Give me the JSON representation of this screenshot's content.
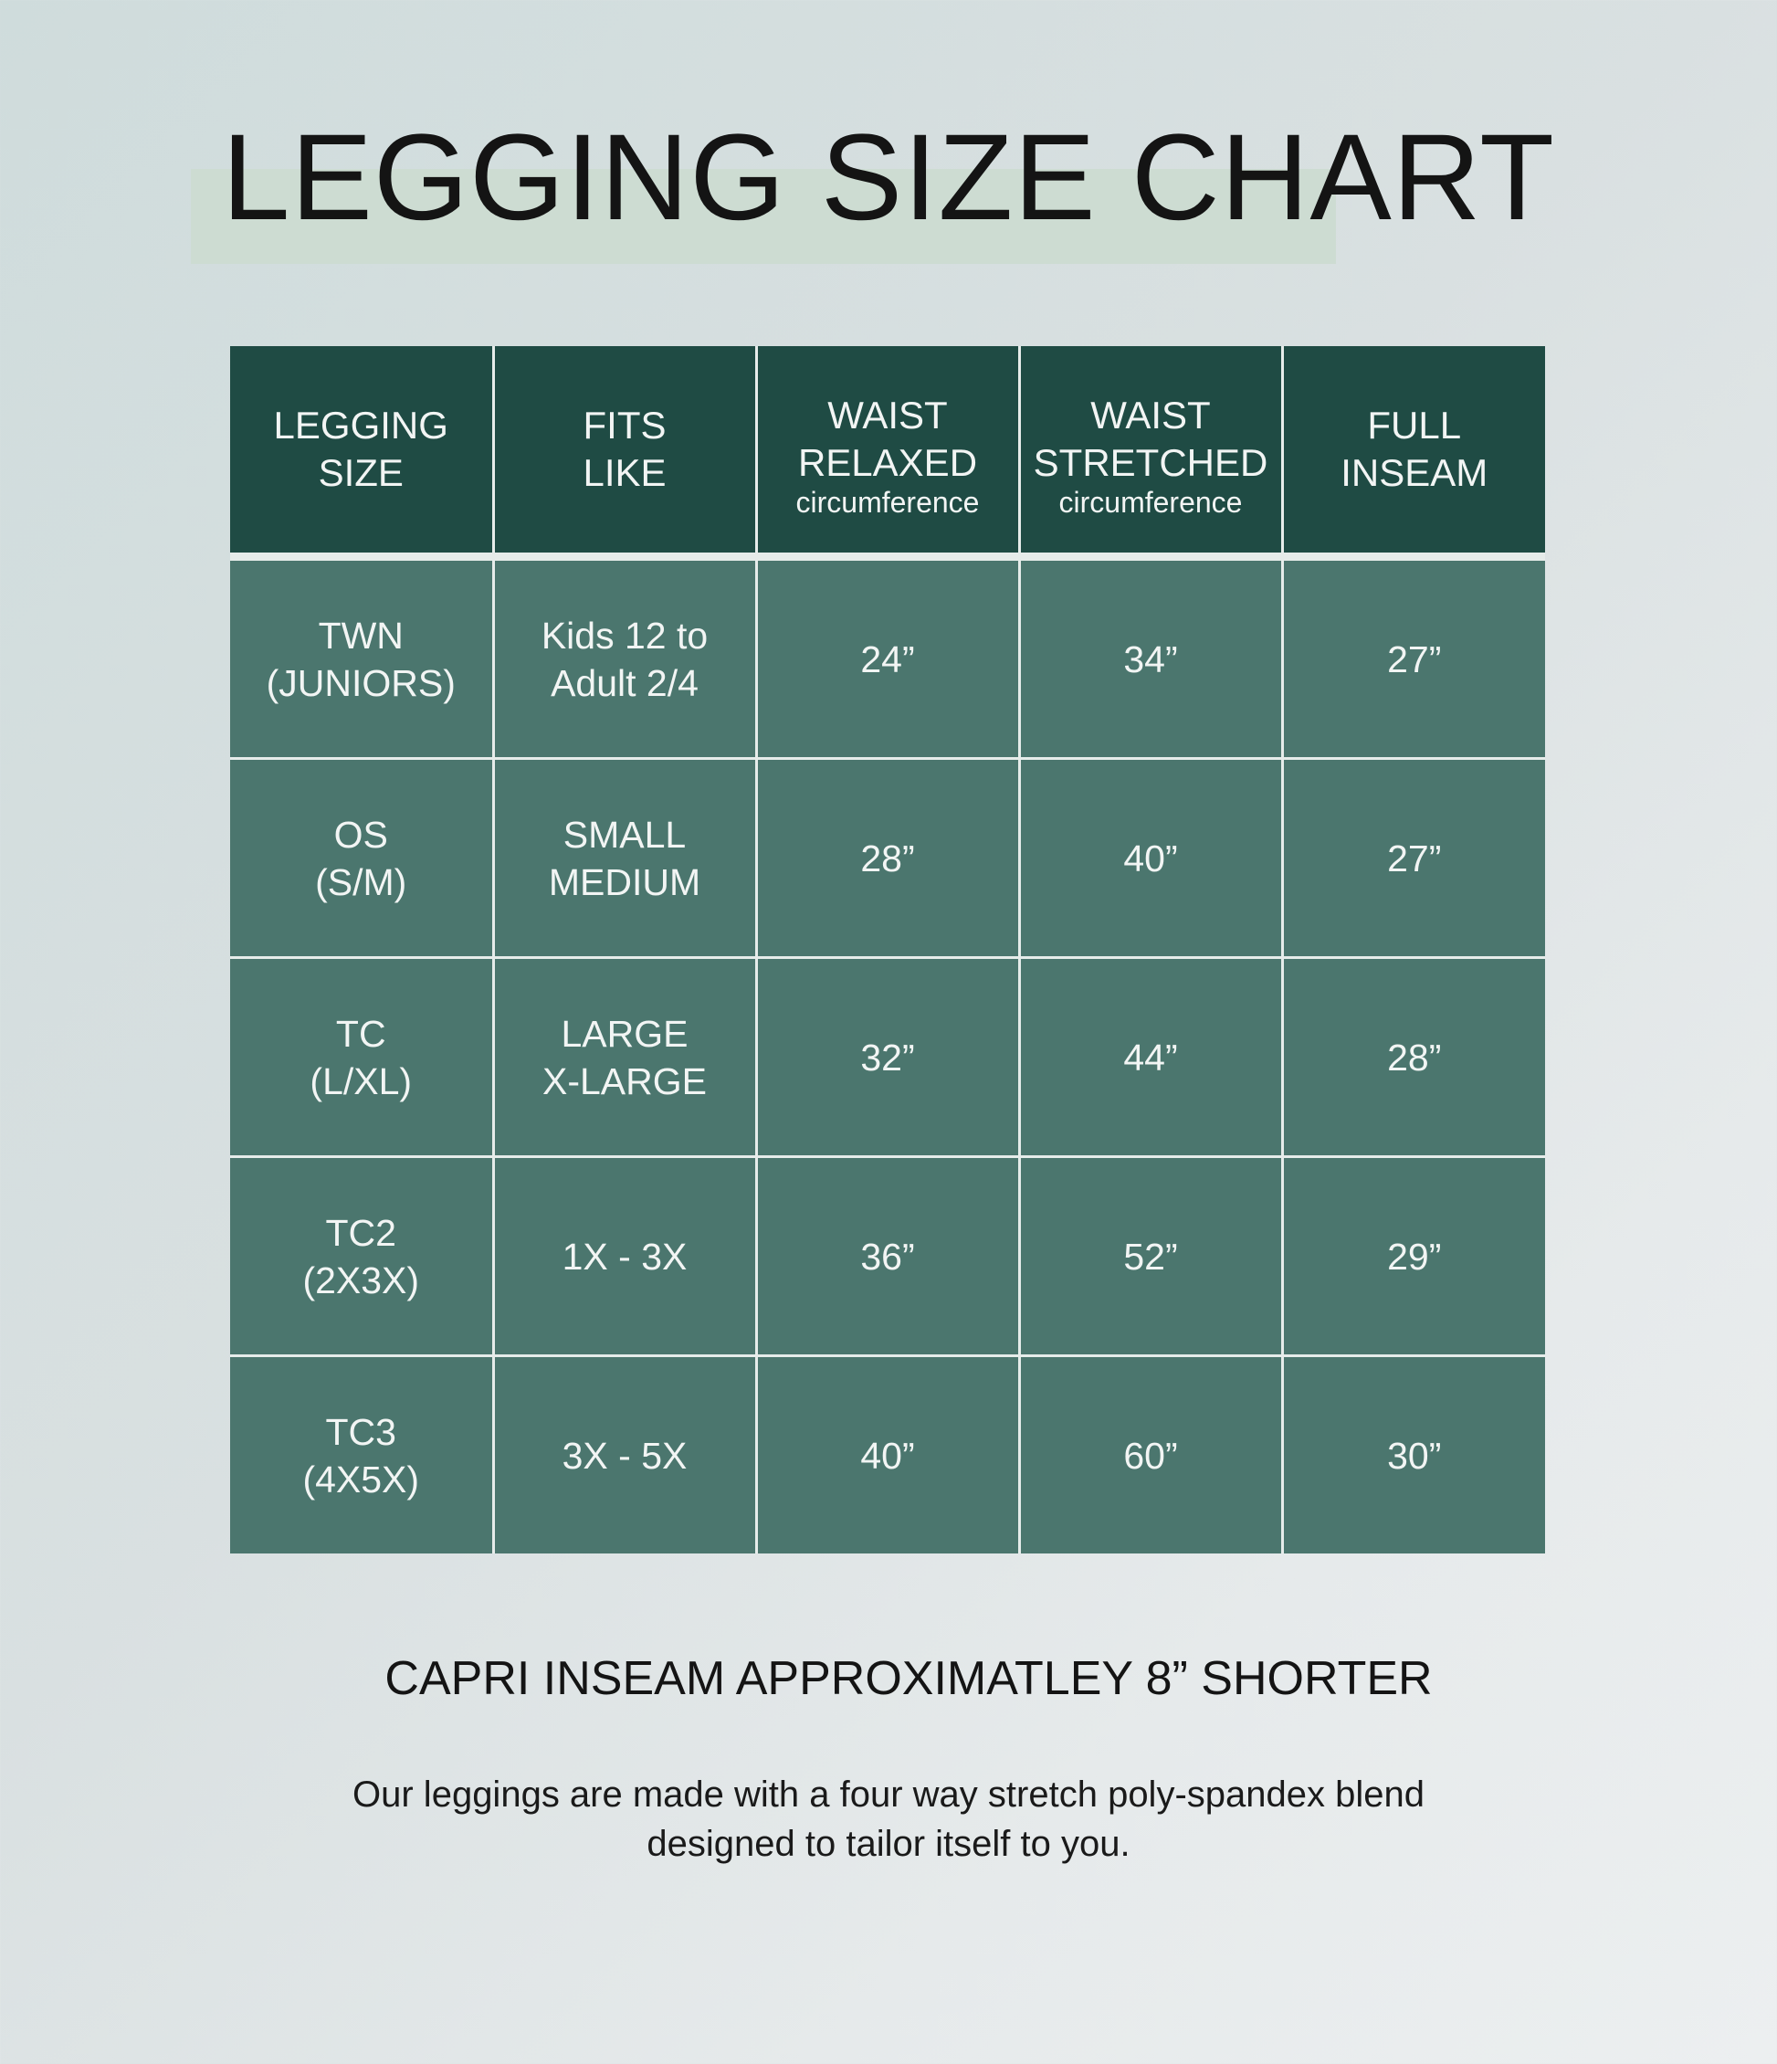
{
  "title": "LEGGING SIZE CHART",
  "table": {
    "headers": [
      {
        "lines": [
          "LEGGING",
          "SIZE"
        ],
        "sub": ""
      },
      {
        "lines": [
          "FITS",
          "LIKE"
        ],
        "sub": ""
      },
      {
        "lines": [
          "WAIST",
          "RELAXED"
        ],
        "sub": "circumference"
      },
      {
        "lines": [
          "WAIST",
          "STRETCHED"
        ],
        "sub": "circumference"
      },
      {
        "lines": [
          "FULL",
          "INSEAM"
        ],
        "sub": ""
      }
    ],
    "rows": [
      {
        "size": [
          "TWN",
          "(JUNIORS)"
        ],
        "fits": [
          "Kids 12 to",
          "Adult 2/4"
        ],
        "relaxed": "24”",
        "stretched": "34”",
        "inseam": "27”"
      },
      {
        "size": [
          "OS",
          "(S/M)"
        ],
        "fits": [
          "SMALL",
          "MEDIUM"
        ],
        "relaxed": "28”",
        "stretched": "40”",
        "inseam": "27”"
      },
      {
        "size": [
          "TC",
          "(L/XL)"
        ],
        "fits": [
          "LARGE",
          "X-LARGE"
        ],
        "relaxed": "32”",
        "stretched": "44”",
        "inseam": "28”"
      },
      {
        "size": [
          "TC2",
          "(2X3X)"
        ],
        "fits": [
          "1X - 3X",
          ""
        ],
        "relaxed": "36”",
        "stretched": "52”",
        "inseam": "29”"
      },
      {
        "size": [
          "TC3",
          "(4X5X)"
        ],
        "fits": [
          "3X - 5X",
          ""
        ],
        "relaxed": "40”",
        "stretched": "60”",
        "inseam": "30”"
      }
    ]
  },
  "capri_note": "CAPRI INSEAM APPROXIMATLEY 8” SHORTER",
  "description": [
    "Our leggings are made with a four way stretch poly-spandex blend",
    "designed to tailor itself to you."
  ],
  "colors": {
    "header": "#1f4b44",
    "cell": "#4b766e",
    "highlight": "#cddcd2"
  }
}
